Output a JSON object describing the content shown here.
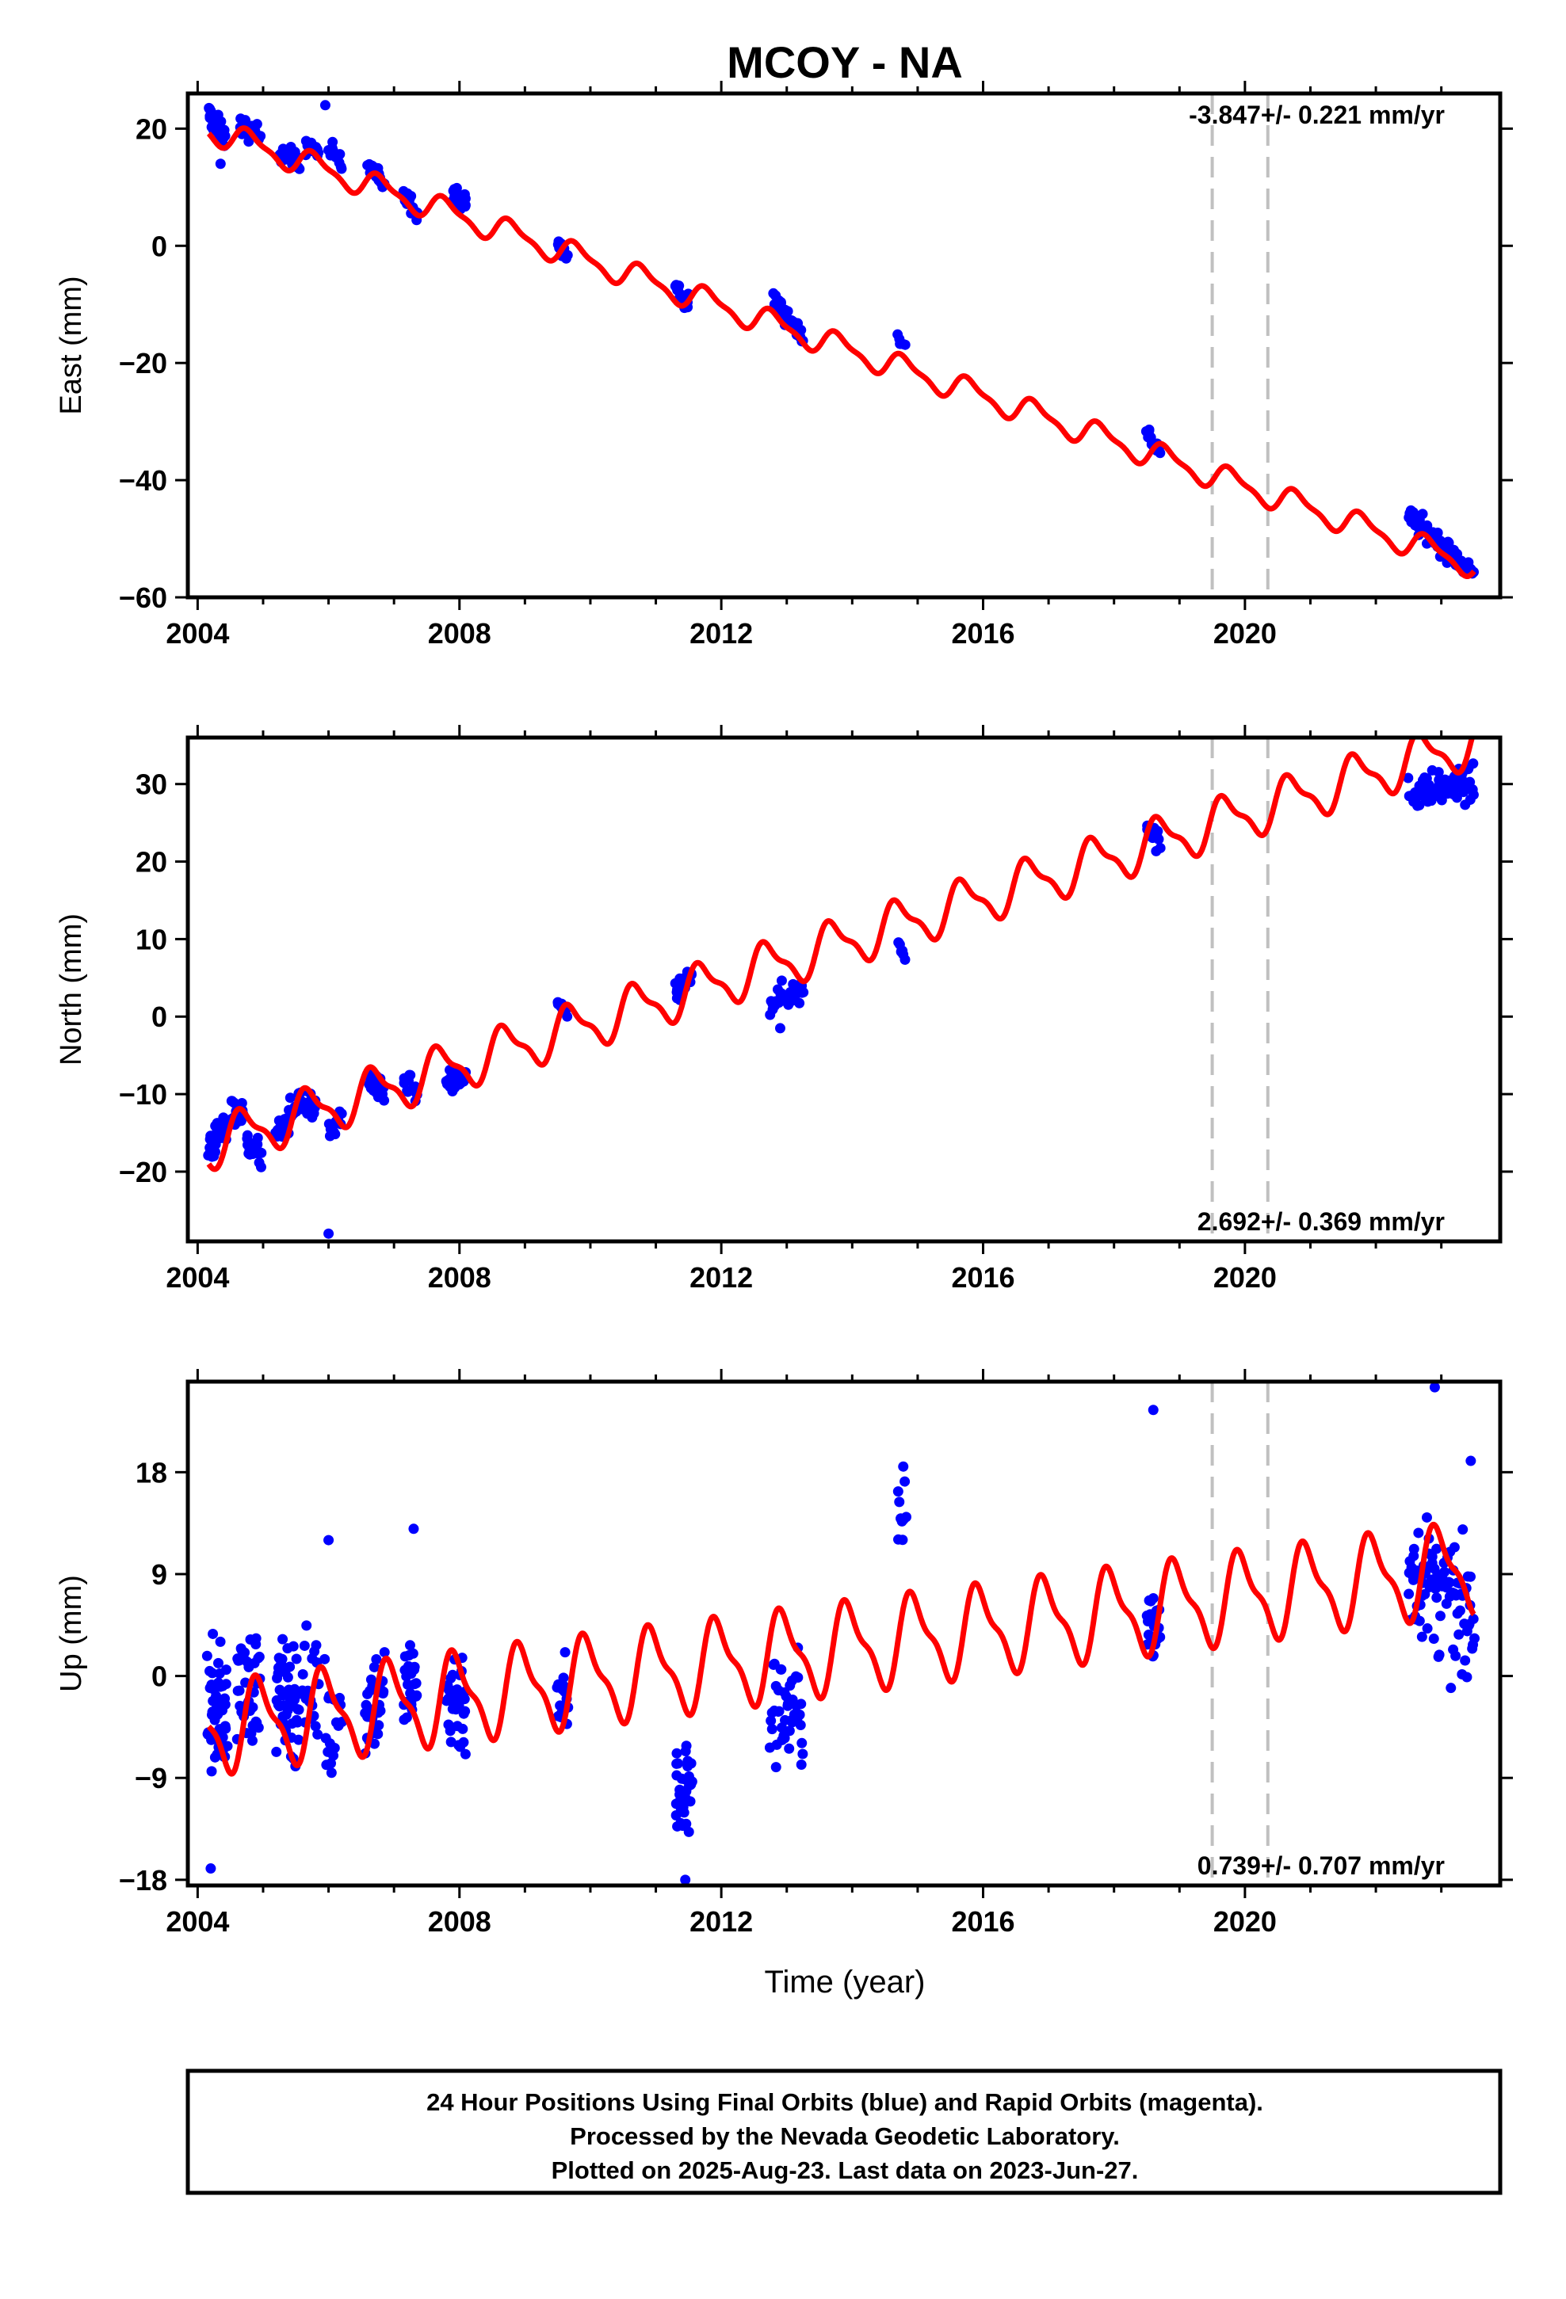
{
  "title": "MCOY - NA",
  "colors": {
    "final_orbits": "#0000ff",
    "model": "#ff0000",
    "break_line": "#c0c0c0",
    "frame": "#000000"
  },
  "xaxis": {
    "label": "Time (year)",
    "ticks": [
      2004,
      2008,
      2012,
      2016,
      2020
    ],
    "range": [
      2003.85,
      2023.9
    ]
  },
  "breaks": [
    2019.5,
    2020.35
  ],
  "footer": {
    "lines": [
      "24 Hour Positions Using Final Orbits (blue) and Rapid Orbits (magenta).",
      "Processed by the Nevada Geodetic Laboratory.",
      "Plotted on 2025-Aug-23. Last data on 2023-Jun-27."
    ]
  },
  "chart_data": [
    {
      "type": "scatter",
      "component": "east",
      "ylabel": "East (mm)",
      "ylim": [
        -60,
        26
      ],
      "yticks": [
        -60,
        -40,
        -20,
        0,
        20
      ],
      "rate_text": "-3.847+/- 0.221 mm/yr",
      "rate_position": "top-right",
      "model": {
        "rate": -3.847,
        "offset_2004": 20.5,
        "seasonal_amp": 2.0,
        "seasonal_phase_year": 0.55
      },
      "campaigns": [
        {
          "t0": 2004.17,
          "t1": 2004.42,
          "y0": 22.5,
          "y1": 18.5,
          "n": 40,
          "spread": 1.6
        },
        {
          "t0": 2004.65,
          "t1": 2004.95,
          "y0": 20.5,
          "y1": 18.5,
          "n": 30,
          "spread": 1.4
        },
        {
          "t0": 2005.25,
          "t1": 2005.55,
          "y0": 16.5,
          "y1": 14.0,
          "n": 30,
          "spread": 1.4
        },
        {
          "t0": 2005.65,
          "t1": 2005.85,
          "y0": 17.0,
          "y1": 16.0,
          "n": 14,
          "spread": 1.2
        },
        {
          "t0": 2006.0,
          "t1": 2006.2,
          "y0": 16.5,
          "y1": 14.0,
          "n": 14,
          "spread": 1.4
        },
        {
          "t0": 2006.6,
          "t1": 2006.85,
          "y0": 13.5,
          "y1": 11.0,
          "n": 18,
          "spread": 1.2
        },
        {
          "t0": 2007.15,
          "t1": 2007.35,
          "y0": 9.0,
          "y1": 6.0,
          "n": 16,
          "spread": 1.3
        },
        {
          "t0": 2007.9,
          "t1": 2008.1,
          "y0": 9.0,
          "y1": 7.0,
          "n": 22,
          "spread": 1.2
        },
        {
          "t0": 2009.5,
          "t1": 2009.65,
          "y0": 0.5,
          "y1": -2.0,
          "n": 12,
          "spread": 1.2
        },
        {
          "t0": 2011.3,
          "t1": 2011.5,
          "y0": -7.0,
          "y1": -10.0,
          "n": 20,
          "spread": 1.4
        },
        {
          "t0": 2012.8,
          "t1": 2013.25,
          "y0": -9.0,
          "y1": -15.5,
          "n": 36,
          "spread": 1.4
        },
        {
          "t0": 2014.7,
          "t1": 2014.8,
          "y0": -15.5,
          "y1": -17.0,
          "n": 6,
          "spread": 0.7
        },
        {
          "t0": 2018.5,
          "t1": 2018.7,
          "y0": -32.0,
          "y1": -35.0,
          "n": 16,
          "spread": 1.2
        },
        {
          "t0": 2022.5,
          "t1": 2023.5,
          "y0": -46.0,
          "y1": -56.0,
          "n": 70,
          "spread": 1.5
        }
      ],
      "outliers": [
        {
          "x": 2005.95,
          "y": 24.0
        },
        {
          "x": 2004.35,
          "y": 14.0
        }
      ]
    },
    {
      "type": "scatter",
      "component": "north",
      "ylabel": "North (mm)",
      "ylim": [
        -29,
        36
      ],
      "yticks": [
        -20,
        -10,
        0,
        10,
        20,
        30
      ],
      "rate_text": "2.692+/- 0.369 mm/yr",
      "rate_position": "bottom-right",
      "model": {
        "rate": 2.692,
        "offset_2004": -17.0,
        "seasonal_amp": 2.9,
        "seasonal_phase_year": 0.45
      },
      "campaigns": [
        {
          "t0": 2004.17,
          "t1": 2004.45,
          "y0": -17.0,
          "y1": -14.0,
          "n": 36,
          "spread": 1.8
        },
        {
          "t0": 2004.5,
          "t1": 2004.7,
          "y0": -11.5,
          "y1": -13.0,
          "n": 16,
          "spread": 1.5
        },
        {
          "t0": 2004.75,
          "t1": 2004.98,
          "y0": -16.0,
          "y1": -18.0,
          "n": 22,
          "spread": 1.5
        },
        {
          "t0": 2005.2,
          "t1": 2005.5,
          "y0": -15.5,
          "y1": -11.5,
          "n": 26,
          "spread": 1.6
        },
        {
          "t0": 2005.55,
          "t1": 2005.8,
          "y0": -10.5,
          "y1": -12.0,
          "n": 16,
          "spread": 1.3
        },
        {
          "t0": 2006.0,
          "t1": 2006.2,
          "y0": -15.0,
          "y1": -13.0,
          "n": 14,
          "spread": 1.4
        },
        {
          "t0": 2006.6,
          "t1": 2006.85,
          "y0": -8.0,
          "y1": -10.5,
          "n": 20,
          "spread": 1.3
        },
        {
          "t0": 2007.15,
          "t1": 2007.35,
          "y0": -8.0,
          "y1": -10.0,
          "n": 16,
          "spread": 1.2
        },
        {
          "t0": 2007.8,
          "t1": 2008.1,
          "y0": -9.0,
          "y1": -8.0,
          "n": 22,
          "spread": 1.3
        },
        {
          "t0": 2009.5,
          "t1": 2009.65,
          "y0": 2.0,
          "y1": 0.5,
          "n": 12,
          "spread": 0.9
        },
        {
          "t0": 2011.3,
          "t1": 2011.55,
          "y0": 2.5,
          "y1": 5.5,
          "n": 22,
          "spread": 1.2
        },
        {
          "t0": 2012.75,
          "t1": 2013.25,
          "y0": 2.0,
          "y1": 3.5,
          "n": 38,
          "spread": 1.4
        },
        {
          "t0": 2014.7,
          "t1": 2014.8,
          "y0": 9.5,
          "y1": 8.0,
          "n": 6,
          "spread": 0.7
        },
        {
          "t0": 2018.5,
          "t1": 2018.7,
          "y0": 25.0,
          "y1": 22.0,
          "n": 16,
          "spread": 1.3
        },
        {
          "t0": 2022.5,
          "t1": 2023.5,
          "y0": 29.0,
          "y1": 30.0,
          "n": 72,
          "spread": 1.8
        }
      ],
      "outliers": [
        {
          "x": 2006.0,
          "y": -28.0
        },
        {
          "x": 2012.9,
          "y": -1.5
        }
      ]
    },
    {
      "type": "scatter",
      "component": "up",
      "ylabel": "Up (mm)",
      "ylim": [
        -18.5,
        26
      ],
      "yticks": [
        -18,
        -9,
        0,
        9,
        18
      ],
      "rate_text": "0.739+/- 0.707 mm/yr",
      "rate_position": "bottom-right",
      "model": {
        "rate": 0.739,
        "offset_2004": -4.8,
        "seasonal_amp": 3.6,
        "seasonal_phase_year": 0.7
      },
      "campaigns": [
        {
          "t0": 2004.15,
          "t1": 2004.45,
          "y0": -3.0,
          "y1": -3.0,
          "n": 50,
          "spread": 4.5
        },
        {
          "t0": 2004.6,
          "t1": 2004.95,
          "y0": -1.0,
          "y1": -1.0,
          "n": 40,
          "spread": 4.0
        },
        {
          "t0": 2005.2,
          "t1": 2005.55,
          "y0": -2.0,
          "y1": -2.0,
          "n": 45,
          "spread": 4.2
        },
        {
          "t0": 2005.6,
          "t1": 2005.85,
          "y0": -1.0,
          "y1": -1.0,
          "n": 20,
          "spread": 4.0
        },
        {
          "t0": 2005.95,
          "t1": 2006.2,
          "y0": -4.0,
          "y1": -4.0,
          "n": 20,
          "spread": 5.0
        },
        {
          "t0": 2006.55,
          "t1": 2006.85,
          "y0": -2.0,
          "y1": -2.0,
          "n": 30,
          "spread": 4.0
        },
        {
          "t0": 2007.15,
          "t1": 2007.35,
          "y0": -1.0,
          "y1": -1.0,
          "n": 24,
          "spread": 4.0
        },
        {
          "t0": 2007.8,
          "t1": 2008.1,
          "y0": -2.0,
          "y1": -2.0,
          "n": 36,
          "spread": 4.0
        },
        {
          "t0": 2009.5,
          "t1": 2009.65,
          "y0": -2.0,
          "y1": -2.0,
          "n": 16,
          "spread": 3.5
        },
        {
          "t0": 2011.3,
          "t1": 2011.55,
          "y0": -10.0,
          "y1": -10.0,
          "n": 38,
          "spread": 4.0
        },
        {
          "t0": 2012.75,
          "t1": 2013.25,
          "y0": -3.0,
          "y1": -3.0,
          "n": 44,
          "spread": 4.0
        },
        {
          "t0": 2014.7,
          "t1": 2014.82,
          "y0": 14.0,
          "y1": 14.0,
          "n": 10,
          "spread": 3.0
        },
        {
          "t0": 2018.5,
          "t1": 2018.7,
          "y0": 4.0,
          "y1": 4.0,
          "n": 22,
          "spread": 3.5
        },
        {
          "t0": 2022.5,
          "t1": 2023.5,
          "y0": 10.0,
          "y1": 4.0,
          "n": 90,
          "spread": 4.5
        }
      ],
      "outliers": [
        {
          "x": 2018.6,
          "y": 23.5
        },
        {
          "x": 2022.9,
          "y": 25.5
        },
        {
          "x": 2007.3,
          "y": 13.0
        },
        {
          "x": 2006.0,
          "y": 12.0
        },
        {
          "x": 2004.2,
          "y": -17.0
        },
        {
          "x": 2011.45,
          "y": -18.0
        },
        {
          "x": 2014.78,
          "y": 18.5
        },
        {
          "x": 2023.45,
          "y": 19.0
        }
      ]
    }
  ]
}
